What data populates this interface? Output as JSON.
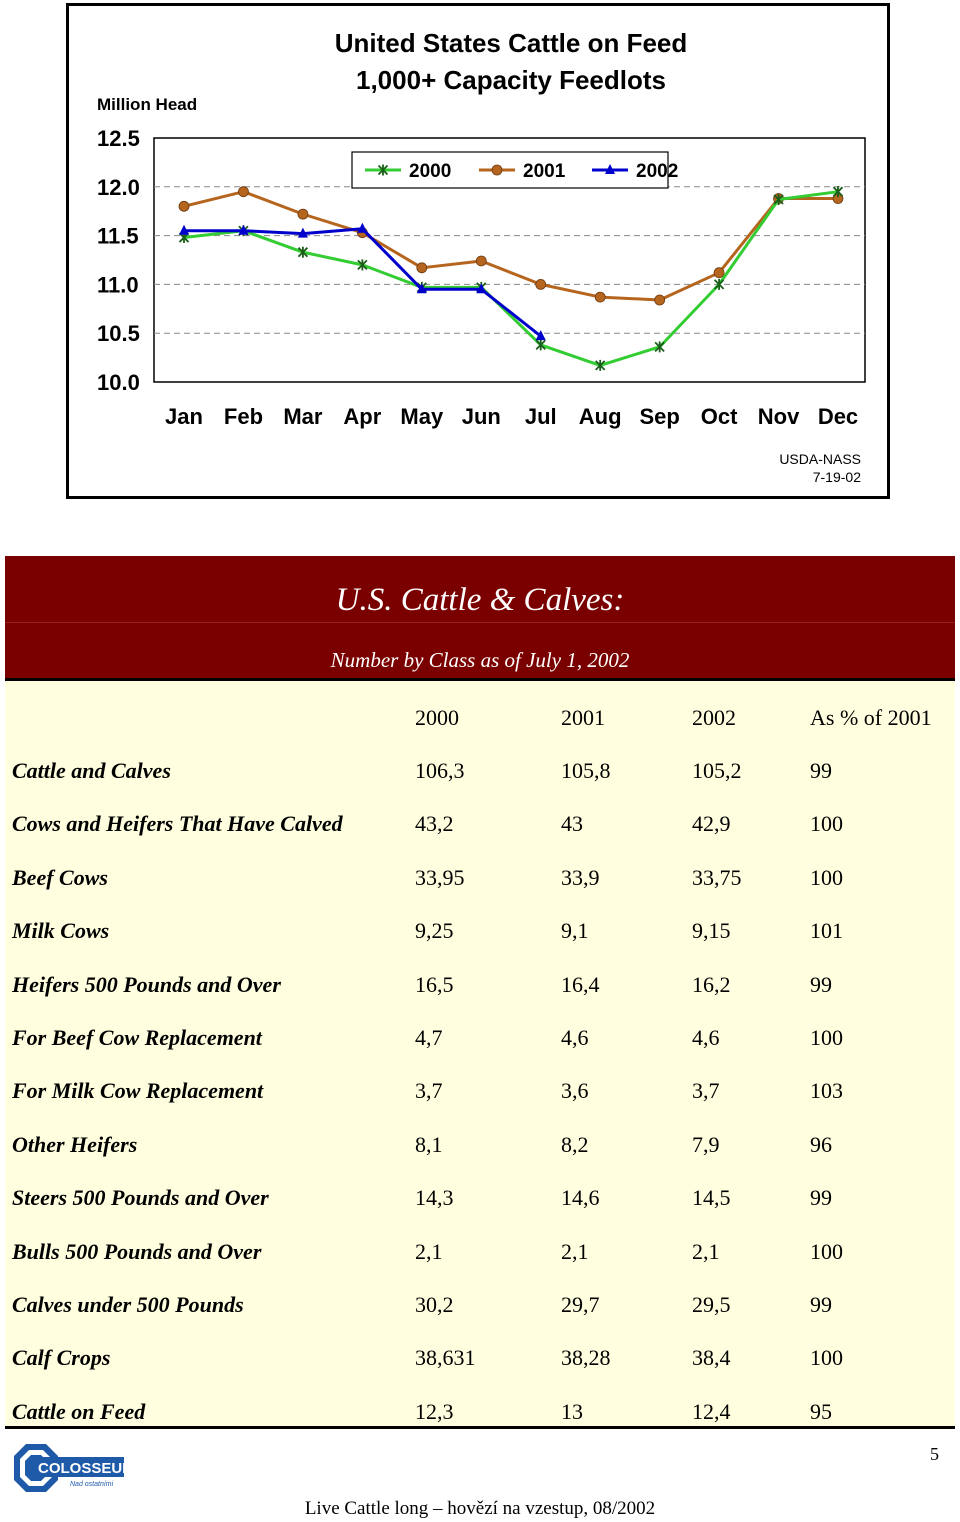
{
  "chart_data": {
    "type": "line",
    "title": "United States Cattle on Feed",
    "subtitle": "1,000+ Capacity Feedlots",
    "ylabel": "Million Head",
    "categories": [
      "Jan",
      "Feb",
      "Mar",
      "Apr",
      "May",
      "Jun",
      "Jul",
      "Aug",
      "Sep",
      "Oct",
      "Nov",
      "Dec"
    ],
    "ylim": [
      10.0,
      12.5
    ],
    "yticks": [
      "12.5",
      "12.0",
      "11.5",
      "11.0",
      "10.5",
      "10.0"
    ],
    "grid": true,
    "legend_position": "top",
    "source": "USDA-NASS",
    "date": "7-19-02",
    "series": [
      {
        "name": "2000",
        "color": "#33cc33",
        "marker": "star",
        "values": [
          11.48,
          11.55,
          11.33,
          11.2,
          10.97,
          10.97,
          10.38,
          10.17,
          10.36,
          11.0,
          11.87,
          11.95
        ]
      },
      {
        "name": "2001",
        "color": "#b5651d",
        "marker": "circle",
        "values": [
          11.8,
          11.95,
          11.72,
          11.53,
          11.17,
          11.24,
          11.0,
          10.87,
          10.84,
          11.12,
          11.88,
          11.88
        ]
      },
      {
        "name": "2002",
        "color": "#0000cc",
        "marker": "triangle",
        "values": [
          11.55,
          11.55,
          11.52,
          11.57,
          10.95,
          10.95,
          10.47,
          null,
          null,
          null,
          null,
          null
        ]
      }
    ]
  },
  "table": {
    "title": "U.S. Cattle & Calves:",
    "subtitle": "Number by Class as of July 1, 2002",
    "headers": [
      "2000",
      "2001",
      "2002",
      "As % of 2001"
    ],
    "rows": [
      {
        "label": "Cattle and Calves",
        "values": [
          "106,3",
          "105,8",
          "105,2",
          "99"
        ]
      },
      {
        "label": "Cows and Heifers That Have Calved",
        "values": [
          "43,2",
          "43",
          "42,9",
          "100"
        ]
      },
      {
        "label": "Beef Cows",
        "values": [
          "33,95",
          "33,9",
          "33,75",
          "100"
        ]
      },
      {
        "label": "Milk Cows",
        "values": [
          "9,25",
          "9,1",
          "9,15",
          "101"
        ]
      },
      {
        "label": "Heifers 500 Pounds and Over",
        "values": [
          "16,5",
          "16,4",
          "16,2",
          "99"
        ]
      },
      {
        "label": "For Beef Cow Replacement",
        "values": [
          "4,7",
          "4,6",
          "4,6",
          "100"
        ]
      },
      {
        "label": "For Milk Cow Replacement",
        "values": [
          "3,7",
          "3,6",
          "3,7",
          "103"
        ]
      },
      {
        "label": "Other Heifers",
        "values": [
          "8,1",
          "8,2",
          "7,9",
          "96"
        ]
      },
      {
        "label": "Steers 500 Pounds and Over",
        "values": [
          "14,3",
          "14,6",
          "14,5",
          "99"
        ]
      },
      {
        "label": "Bulls 500 Pounds and Over",
        "values": [
          "2,1",
          "2,1",
          "2,1",
          "100"
        ]
      },
      {
        "label": "Calves under 500 Pounds",
        "values": [
          "30,2",
          "29,7",
          "29,5",
          "99"
        ]
      },
      {
        "label": "Calf Crops",
        "values": [
          "38,631",
          "38,28",
          "38,4",
          "100"
        ]
      },
      {
        "label": "Cattle on Feed",
        "values": [
          "12,3",
          "13",
          "12,4",
          "95"
        ]
      }
    ]
  },
  "logo": {
    "name": "COLOSSEUM",
    "tagline": "Nad ostatními"
  },
  "page_number": "5",
  "footer": "Live Cattle long – hovězí na vzestup, 08/2002"
}
